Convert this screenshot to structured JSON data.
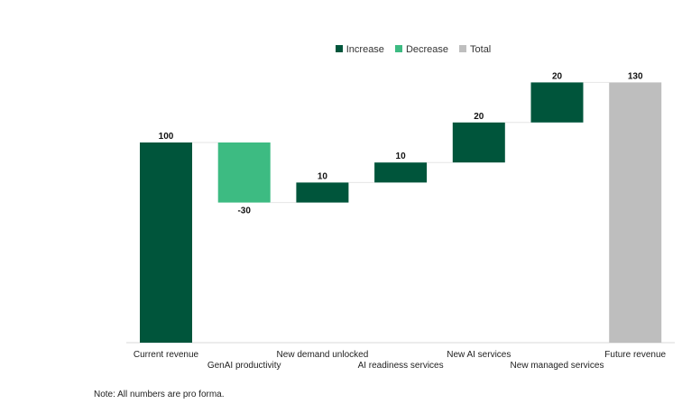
{
  "chart_data": {
    "type": "waterfall",
    "categories": [
      "Current revenue",
      "GenAI productivity",
      "New demand unlocked",
      "AI readiness services",
      "New AI services",
      "New managed services",
      "Future revenue"
    ],
    "values": [
      100,
      -30,
      10,
      10,
      20,
      20,
      130
    ],
    "kinds": [
      "increase",
      "decrease",
      "increase",
      "increase",
      "increase",
      "increase",
      "total"
    ],
    "data_labels": [
      "100",
      "-30",
      "10",
      "10",
      "20",
      "20",
      "130"
    ],
    "legend": [
      {
        "name": "Increase",
        "color": "#00553B"
      },
      {
        "name": "Decrease",
        "color": "#3DBB82"
      },
      {
        "name": "Total",
        "color": "#BEBEBE"
      }
    ],
    "legend_position": "top",
    "ylim": [
      0,
      130
    ],
    "grid": false
  },
  "note": "Note: All numbers are pro forma."
}
